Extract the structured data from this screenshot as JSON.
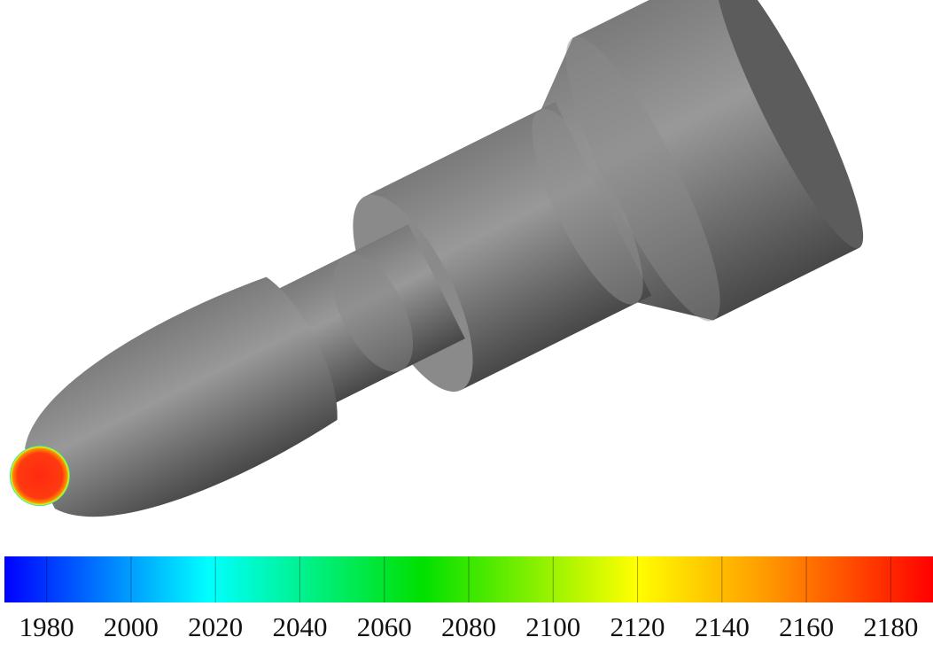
{
  "colorbar": {
    "range": [
      1970,
      2190
    ],
    "ticks": [
      1980,
      2000,
      2020,
      2040,
      2060,
      2080,
      2100,
      2120,
      2140,
      2160,
      2180
    ]
  }
}
